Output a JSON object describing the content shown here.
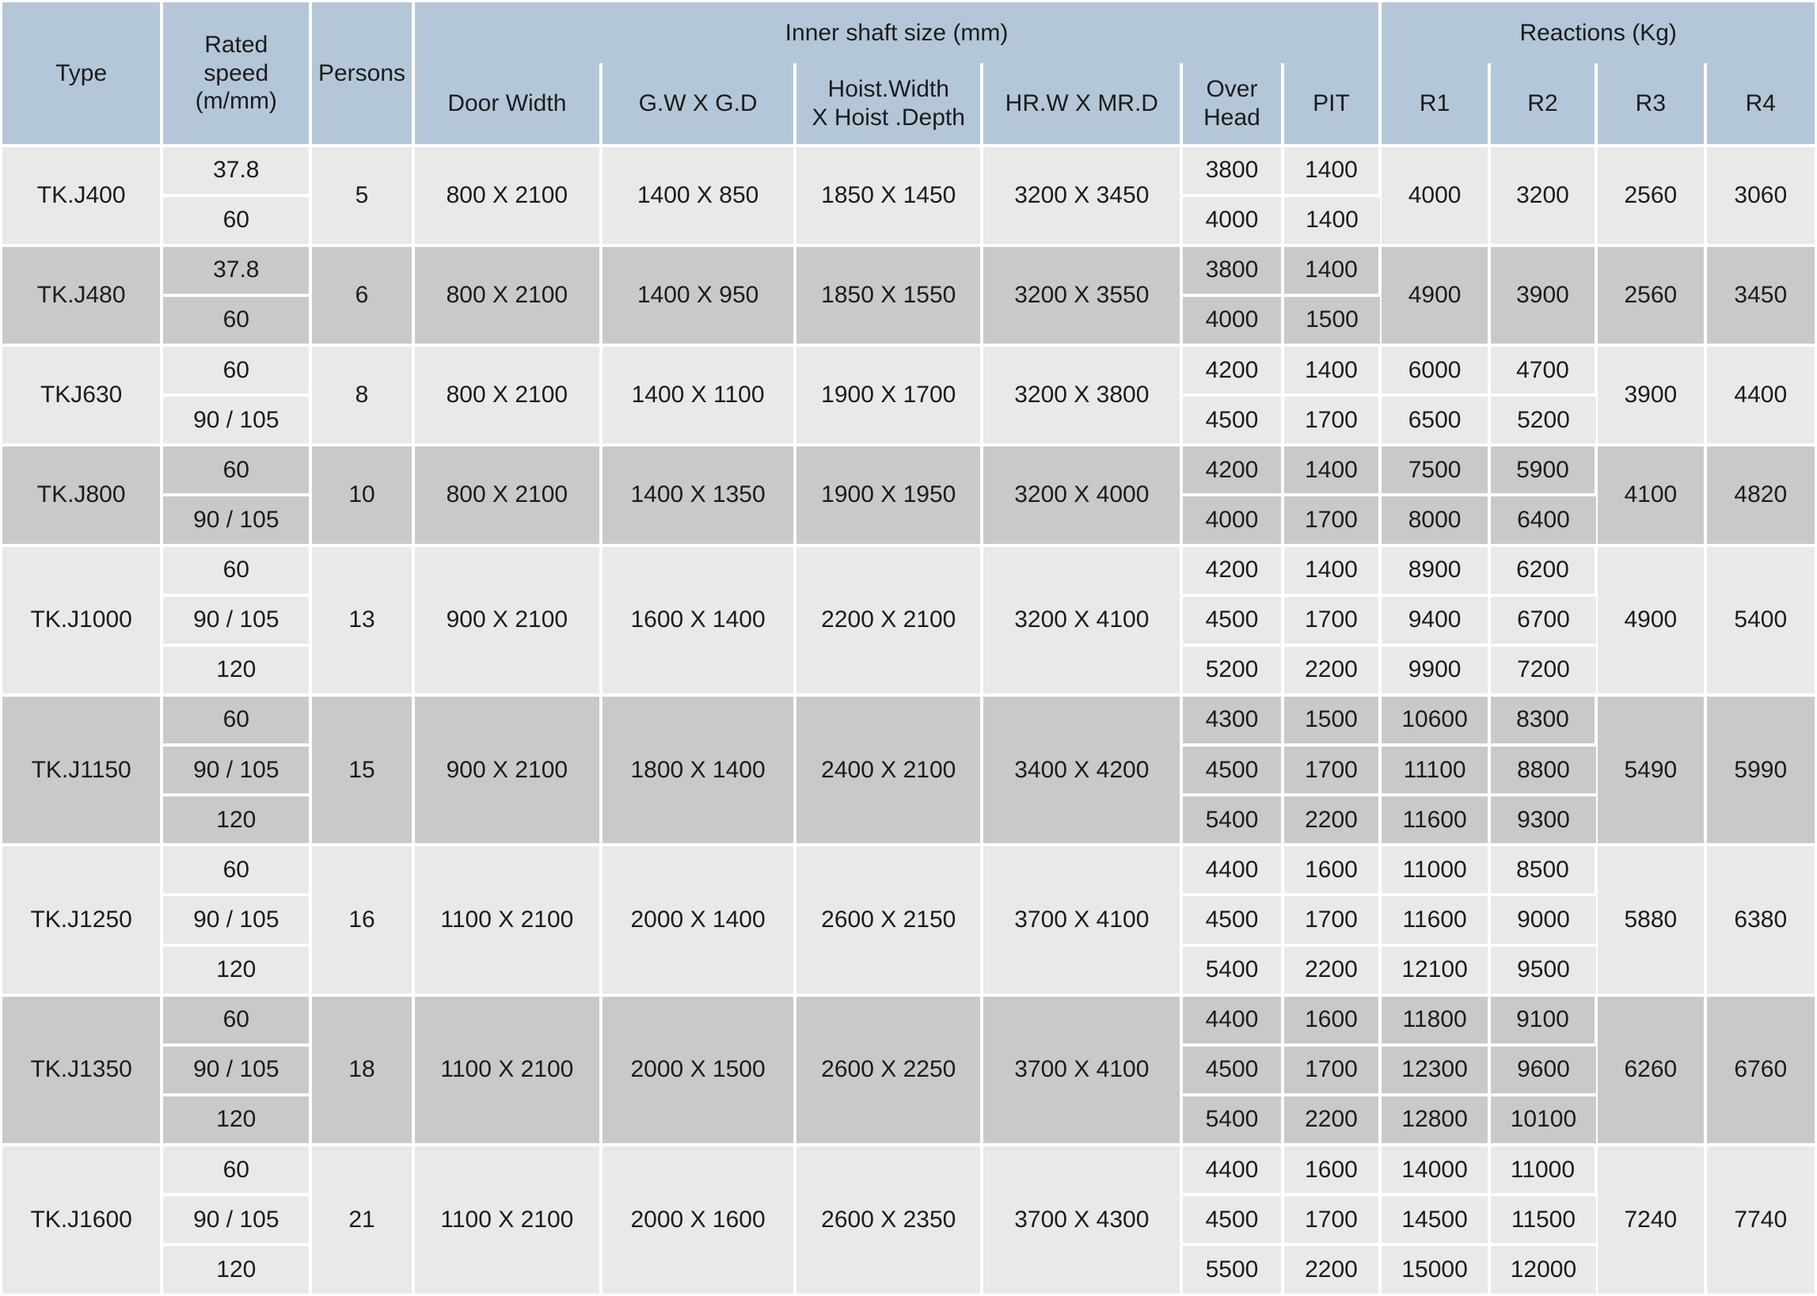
{
  "table": {
    "colors": {
      "header_bg": "#b4c7d8",
      "row_light": "#e9e9e9",
      "row_dark": "#c9c9c9",
      "border": "#ffffff",
      "text": "#1c1c1c"
    },
    "header": {
      "type": "Type",
      "rated_speed": "Rated\nspeed\n(m/mm)",
      "persons": "Persons",
      "inner_shaft_group": "Inner shaft size (mm)",
      "reactions_group": "Reactions (Kg)",
      "door_width": "Door Width",
      "gw_gd": "G.W X G.D",
      "hoist": "Hoist.Width\nX Hoist .Depth",
      "hrw_mrd": "HR.W X MR.D",
      "over_head": "Over\nHead",
      "pit": "PIT",
      "r1": "R1",
      "r2": "R2",
      "r3": "R3",
      "r4": "R4"
    },
    "rows": [
      {
        "type": "TK.J400",
        "persons": "5",
        "door_width": "800 X 2100",
        "gw_gd": "1400 X 850",
        "hoist": "1850 X 1450",
        "hrw_mrd": "3200 X 3450",
        "speeds": [
          "37.8",
          "60"
        ],
        "over_head": [
          "3800",
          "4000"
        ],
        "pit": [
          "1400",
          "1400"
        ],
        "r1": [
          "4000"
        ],
        "r2": [
          "3200"
        ],
        "r3": "2560",
        "r4": "3060"
      },
      {
        "type": "TK.J480",
        "persons": "6",
        "door_width": "800 X 2100",
        "gw_gd": "1400 X 950",
        "hoist": "1850 X 1550",
        "hrw_mrd": "3200 X 3550",
        "speeds": [
          "37.8",
          "60"
        ],
        "over_head": [
          "3800",
          "4000"
        ],
        "pit": [
          "1400",
          "1500"
        ],
        "r1": [
          "4900"
        ],
        "r2": [
          "3900"
        ],
        "r3": "2560",
        "r4": "3450"
      },
      {
        "type": "TKJ630",
        "persons": "8",
        "door_width": "800 X 2100",
        "gw_gd": "1400 X 1100",
        "hoist": "1900 X 1700",
        "hrw_mrd": "3200 X 3800",
        "speeds": [
          "60",
          "90 / 105"
        ],
        "over_head": [
          "4200",
          "4500"
        ],
        "pit": [
          "1400",
          "1700"
        ],
        "r1": [
          "6000",
          "6500"
        ],
        "r2": [
          "4700",
          "5200"
        ],
        "r3": "3900",
        "r4": "4400"
      },
      {
        "type": "TK.J800",
        "persons": "10",
        "door_width": "800 X 2100",
        "gw_gd": "1400 X 1350",
        "hoist": "1900 X 1950",
        "hrw_mrd": "3200 X 4000",
        "speeds": [
          "60",
          "90 / 105"
        ],
        "over_head": [
          "4200",
          "4000"
        ],
        "pit": [
          "1400",
          "1700"
        ],
        "r1": [
          "7500",
          "8000"
        ],
        "r2": [
          "5900",
          "6400"
        ],
        "r3": "4100",
        "r4": "4820"
      },
      {
        "type": "TK.J1000",
        "persons": "13",
        "door_width": "900 X 2100",
        "gw_gd": "1600 X 1400",
        "hoist": "2200 X 2100",
        "hrw_mrd": "3200 X 4100",
        "speeds": [
          "60",
          "90 / 105",
          "120"
        ],
        "over_head": [
          "4200",
          "4500",
          "5200"
        ],
        "pit": [
          "1400",
          "1700",
          "2200"
        ],
        "r1": [
          "8900",
          "9400",
          "9900"
        ],
        "r2": [
          "6200",
          "6700",
          "7200"
        ],
        "r3": "4900",
        "r4": "5400"
      },
      {
        "type": "TK.J1150",
        "persons": "15",
        "door_width": "900 X 2100",
        "gw_gd": "1800 X 1400",
        "hoist": "2400 X 2100",
        "hrw_mrd": "3400 X 4200",
        "speeds": [
          "60",
          "90 / 105",
          "120"
        ],
        "over_head": [
          "4300",
          "4500",
          "5400"
        ],
        "pit": [
          "1500",
          "1700",
          "2200"
        ],
        "r1": [
          "10600",
          "11100",
          "11600"
        ],
        "r2": [
          "8300",
          "8800",
          "9300"
        ],
        "r3": "5490",
        "r4": "5990"
      },
      {
        "type": "TK.J1250",
        "persons": "16",
        "door_width": "1100 X 2100",
        "gw_gd": "2000 X 1400",
        "hoist": "2600 X 2150",
        "hrw_mrd": "3700 X 4100",
        "speeds": [
          "60",
          "90 / 105",
          "120"
        ],
        "over_head": [
          "4400",
          "4500",
          "5400"
        ],
        "pit": [
          "1600",
          "1700",
          "2200"
        ],
        "r1": [
          "11000",
          "11600",
          "12100"
        ],
        "r2": [
          "8500",
          "9000",
          "9500"
        ],
        "r3": "5880",
        "r4": "6380"
      },
      {
        "type": "TK.J1350",
        "persons": "18",
        "door_width": "1100 X 2100",
        "gw_gd": "2000 X 1500",
        "hoist": "2600 X 2250",
        "hrw_mrd": "3700 X 4100",
        "speeds": [
          "60",
          "90 / 105",
          "120"
        ],
        "over_head": [
          "4400",
          "4500",
          "5400"
        ],
        "pit": [
          "1600",
          "1700",
          "2200"
        ],
        "r1": [
          "11800",
          "12300",
          "12800"
        ],
        "r2": [
          "9100",
          "9600",
          "10100"
        ],
        "r3": "6260",
        "r4": "6760"
      },
      {
        "type": "TK.J1600",
        "persons": "21",
        "door_width": "1100 X 2100",
        "gw_gd": "2000 X 1600",
        "hoist": "2600 X 2350",
        "hrw_mrd": "3700 X 4300",
        "speeds": [
          "60",
          "90 / 105",
          "120"
        ],
        "over_head": [
          "4400",
          "4500",
          "5500"
        ],
        "pit": [
          "1600",
          "1700",
          "2200"
        ],
        "r1": [
          "14000",
          "14500",
          "15000"
        ],
        "r2": [
          "11000",
          "11500",
          "12000"
        ],
        "r3": "7240",
        "r4": "7740"
      }
    ]
  }
}
